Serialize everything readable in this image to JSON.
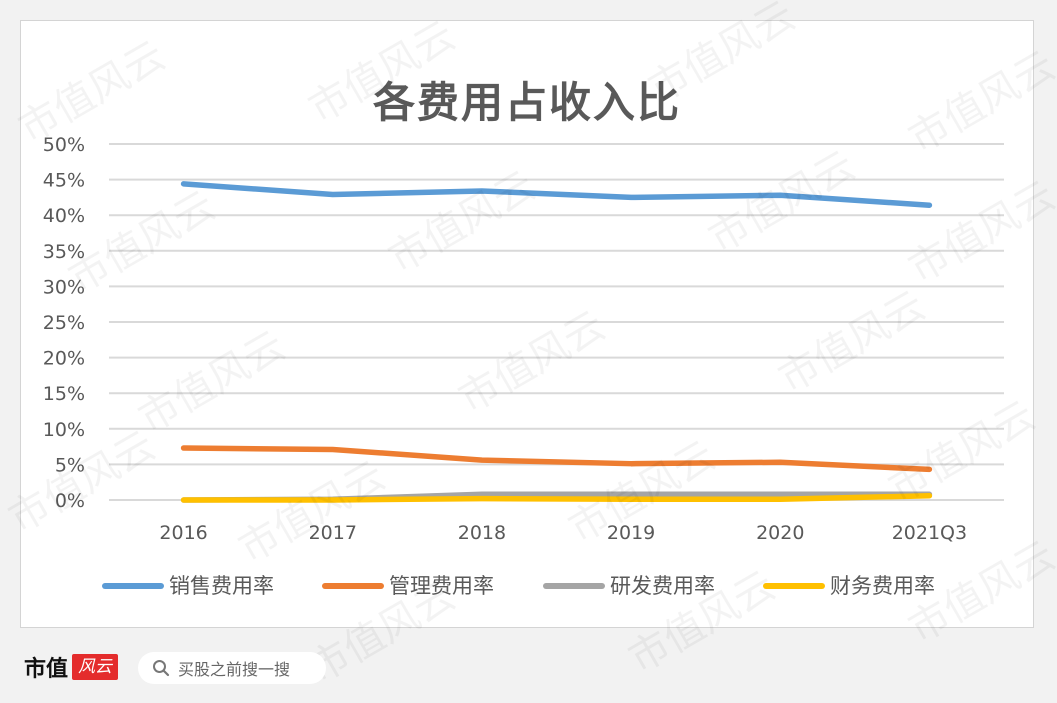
{
  "chart_data": {
    "type": "line",
    "title": "各费用占收入比",
    "categories": [
      "2016",
      "2017",
      "2018",
      "2019",
      "2020",
      "2021Q3"
    ],
    "yticks": [
      "0%",
      "5%",
      "10%",
      "15%",
      "20%",
      "25%",
      "30%",
      "35%",
      "40%",
      "45%",
      "50%"
    ],
    "ylim": [
      0,
      50
    ],
    "grid": true,
    "legend_position": "bottom",
    "series": [
      {
        "name": "销售费用率",
        "color": "#5b9bd5",
        "values": [
          44.4,
          42.9,
          43.4,
          42.5,
          42.8,
          41.4
        ]
      },
      {
        "name": "管理费用率",
        "color": "#ed7d31",
        "values": [
          7.3,
          7.1,
          5.6,
          5.1,
          5.3,
          4.3
        ]
      },
      {
        "name": "研发费用率",
        "color": "#a5a5a5",
        "values": [
          0.0,
          0.1,
          0.8,
          0.8,
          0.8,
          0.8
        ]
      },
      {
        "name": "财务费用率",
        "color": "#ffc000",
        "values": [
          0.0,
          0.0,
          0.2,
          0.1,
          0.1,
          0.6
        ]
      }
    ]
  },
  "watermark_text": "市值风云",
  "footer": {
    "brand_name": "市值",
    "brand_badge": "风云",
    "search_icon": "search-icon",
    "search_text": "买股之前搜一搜"
  }
}
